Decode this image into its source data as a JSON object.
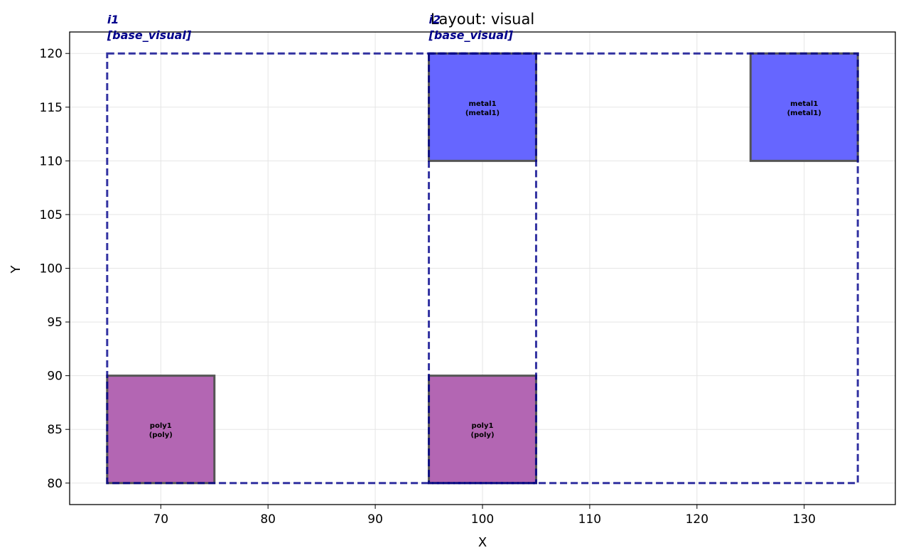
{
  "chart_data": {
    "type": "layout",
    "title": "Layout: visual",
    "xlabel": "X",
    "ylabel": "Y",
    "xlim": [
      61.5,
      138.5
    ],
    "ylim": [
      78,
      122
    ],
    "xticks": [
      70,
      80,
      90,
      100,
      110,
      120,
      130
    ],
    "yticks": [
      80,
      85,
      90,
      95,
      100,
      105,
      110,
      115,
      120
    ],
    "grid": true,
    "rects": [
      {
        "name": "metal1",
        "layer": "metal1",
        "text": "metal1",
        "layer_text": "(metal1)",
        "x0": 95,
        "y0": 110,
        "x1": 105,
        "y1": 120,
        "color": "#6666ff"
      },
      {
        "name": "metal1",
        "layer": "metal1",
        "text": "metal1",
        "layer_text": "(metal1)",
        "x0": 125,
        "y0": 110,
        "x1": 135,
        "y1": 120,
        "color": "#6666ff"
      },
      {
        "name": "poly1",
        "layer": "poly",
        "text": "poly1",
        "layer_text": "(poly)",
        "x0": 65,
        "y0": 80,
        "x1": 75,
        "y1": 90,
        "color": "#b366b3"
      },
      {
        "name": "poly1",
        "layer": "poly",
        "text": "poly1",
        "layer_text": "(poly)",
        "x0": 95,
        "y0": 80,
        "x1": 105,
        "y1": 90,
        "color": "#b366b3"
      }
    ],
    "instances": [
      {
        "name": "i1",
        "cell": "[base_visual]",
        "x0": 65,
        "y0": 80,
        "x1": 135,
        "y1": 120
      },
      {
        "name": "i2",
        "cell": "[base_visual]",
        "x0": 95,
        "y0": 80,
        "x1": 105,
        "y1": 120
      }
    ],
    "colors": {
      "instance_border": "#00008b",
      "instance_label": "#00008b",
      "grid": "#e5e5e5",
      "shape_border": "#555555"
    }
  }
}
